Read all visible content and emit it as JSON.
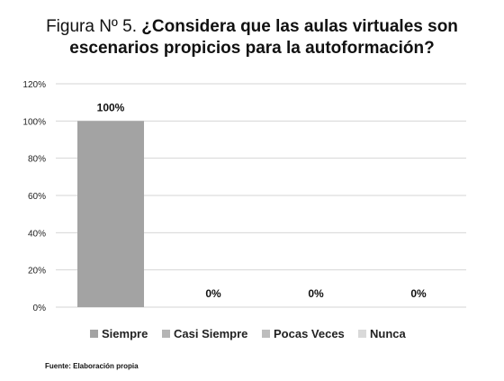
{
  "title": {
    "prefix": "Figura Nº 5.",
    "question": "¿Considera que las aulas virtuales son escenarios propicios para la autoformación?"
  },
  "source": "Fuente: Elaboración propia",
  "colors": {
    "siempre": "#a3a3a3",
    "casi_siempre": "#b5b5b5",
    "pocas_veces": "#bdbdbd",
    "nunca": "#d9d9d9",
    "grid": "#d6d6d6"
  },
  "chart_data": {
    "type": "bar",
    "categories": [
      "Siempre",
      "Casi Siempre",
      "Pocas Veces",
      "Nunca"
    ],
    "values": [
      100,
      0,
      0,
      0
    ],
    "data_labels": [
      "100%",
      "0%",
      "0%",
      "0%"
    ],
    "y_ticks": [
      "0%",
      "20%",
      "40%",
      "60%",
      "80%",
      "100%",
      "120%"
    ],
    "ylim": [
      0,
      120
    ],
    "grid": true,
    "legend": "bottom"
  }
}
